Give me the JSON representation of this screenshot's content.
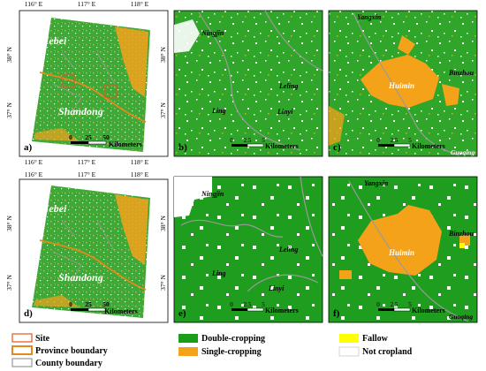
{
  "coords": {
    "lon_labels": [
      "116° E",
      "117° E",
      "118° E"
    ],
    "lat_labels": [
      "38° N",
      "37° N"
    ]
  },
  "panels": {
    "a": {
      "letter": "a)",
      "region_north": "Hebei",
      "region_south": "Shandong",
      "scale_ticks": [
        "0",
        "25",
        "50"
      ],
      "scale_unit": "Kilometers"
    },
    "b": {
      "letter": "b)",
      "places": [
        "Ningjin",
        "Leling",
        "Ling",
        "Linyi"
      ],
      "scale_ticks": [
        "0",
        "2.5",
        "5"
      ],
      "scale_unit": "Kilometers"
    },
    "c": {
      "letter": "c)",
      "places": [
        "Yangxin",
        "Binzhou",
        "Huimin",
        "Guoqing"
      ],
      "scale_ticks": [
        "0",
        "2.5",
        "5"
      ],
      "scale_unit": "Kilometers"
    },
    "d": {
      "letter": "d)",
      "region_north": "Hebei",
      "region_south": "Shandong",
      "scale_ticks": [
        "0",
        "25",
        "50"
      ],
      "scale_unit": "Kilometers"
    },
    "e": {
      "letter": "e)",
      "places": [
        "Ningjin",
        "Leling",
        "Ling",
        "Linyi"
      ],
      "scale_ticks": [
        "0",
        "2.5",
        "5"
      ],
      "scale_unit": "Kilometers"
    },
    "f": {
      "letter": "f)",
      "places": [
        "Yangxin",
        "Binzhou",
        "Huimin",
        "Guoqing"
      ],
      "scale_ticks": [
        "0",
        "2.5",
        "5"
      ],
      "scale_unit": "Kilometers"
    }
  },
  "legend": {
    "site": "Site",
    "province": "Province boundary",
    "county": "County boundary",
    "double": "Double-cropping",
    "single": "Single-cropping",
    "fallow": "Fallow",
    "notcrop": "Not cropland"
  },
  "colors": {
    "double": "#1a9e1a",
    "single": "#f5a21b",
    "fallow": "#ffff00",
    "notcrop": "#ffffff",
    "site": "#e8531d",
    "province": "#e38a1c",
    "county": "#9a9a9a"
  }
}
